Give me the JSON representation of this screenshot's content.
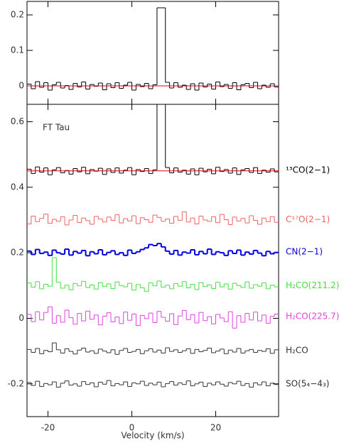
{
  "chart_data": [
    {
      "type": "step",
      "xlim": [
        -25,
        35
      ],
      "xticks": [
        -20,
        0,
        20
      ],
      "ylim": [
        -0.052,
        0.238
      ],
      "yticks": [
        0,
        0.1,
        0.2
      ],
      "x": [
        -24.5,
        -23.5,
        -22.5,
        -21.5,
        -20.5,
        -19.5,
        -18.5,
        -17.5,
        -16.5,
        -15.5,
        -14.5,
        -13.5,
        -12.5,
        -11.5,
        -10.5,
        -9.5,
        -8.5,
        -7.5,
        -6.5,
        -5.5,
        -4.5,
        -3.5,
        -2.5,
        -1.5,
        -0.5,
        0.5,
        1.5,
        2.5,
        3.5,
        4.5,
        5.5,
        6.5,
        7.5,
        8.5,
        9.5,
        10.5,
        11.5,
        12.5,
        13.5,
        14.5,
        15.5,
        16.5,
        17.5,
        18.5,
        19.5,
        20.5,
        21.5,
        22.5,
        23.5,
        24.5,
        25.5,
        26.5,
        27.5,
        28.5,
        29.5,
        30.5,
        31.5,
        32.5,
        33.5,
        34.5
      ],
      "series": [
        {
          "color": "#000000",
          "values": [
            0.005,
            -0.008,
            0.012,
            -0.004,
            0.009,
            -0.012,
            0.003,
            0.01,
            -0.006,
            0.001,
            -0.01,
            0.007,
            -0.003,
            0.011,
            -0.009,
            0.004,
            -0.001,
            0.008,
            -0.011,
            0.006,
            -0.005,
            0.009,
            -0.007,
            0.002,
            0.01,
            -0.012,
            0.004,
            -0.002,
            0.007,
            -0.008,
            0.003,
            0.22,
            0.22,
            0.01,
            -0.006,
            0.009,
            -0.004,
            0.002,
            -0.01,
            0.006,
            -0.012,
            0.008,
            -0.003,
            0.005,
            -0.009,
            0.011,
            -0.002,
            0.004,
            -0.007,
            0.009,
            -0.011,
            0.003,
            0.007,
            -0.005,
            0.01,
            -0.008,
            0.002,
            -0.004,
            0.006,
            -0.003
          ]
        },
        {
          "color": "#e00000",
          "style": "line",
          "x": [
            -25,
            35
          ],
          "values": [
            0,
            0
          ]
        }
      ]
    },
    {
      "type": "step",
      "xlim": [
        -25,
        35
      ],
      "xticks": [
        -20,
        0,
        20
      ],
      "ylim": [
        -0.3,
        0.653
      ],
      "yticks": [
        -0.2,
        0,
        0.2,
        0.4,
        0.6
      ],
      "xlabel": "Velocity (km/s)",
      "annotation": "FT Tau",
      "x": [
        -24.5,
        -23.5,
        -22.5,
        -21.5,
        -20.5,
        -19.5,
        -18.5,
        -17.5,
        -16.5,
        -15.5,
        -14.5,
        -13.5,
        -12.5,
        -11.5,
        -10.5,
        -9.5,
        -8.5,
        -7.5,
        -6.5,
        -5.5,
        -4.5,
        -3.5,
        -2.5,
        -1.5,
        -0.5,
        0.5,
        1.5,
        2.5,
        3.5,
        4.5,
        5.5,
        6.5,
        7.5,
        8.5,
        9.5,
        10.5,
        11.5,
        12.5,
        13.5,
        14.5,
        15.5,
        16.5,
        17.5,
        18.5,
        19.5,
        20.5,
        21.5,
        22.5,
        23.5,
        24.5,
        25.5,
        26.5,
        27.5,
        28.5,
        29.5,
        30.5,
        31.5,
        32.5,
        33.5,
        34.5
      ],
      "series": [
        {
          "name": "¹³CO(2−1)",
          "color": "#000000",
          "values": [
            0.455,
            0.442,
            0.462,
            0.446,
            0.459,
            0.438,
            0.453,
            0.46,
            0.444,
            0.451,
            0.44,
            0.457,
            0.447,
            0.461,
            0.441,
            0.454,
            0.449,
            0.458,
            0.439,
            0.456,
            0.445,
            0.459,
            0.443,
            0.452,
            0.46,
            0.438,
            0.454,
            0.448,
            0.457,
            0.442,
            0.453,
            0.67,
            0.67,
            0.46,
            0.444,
            0.459,
            0.446,
            0.452,
            0.44,
            0.456,
            0.438,
            0.458,
            0.447,
            0.455,
            0.441,
            0.461,
            0.448,
            0.454,
            0.443,
            0.459,
            0.439,
            0.453,
            0.457,
            0.445,
            0.46,
            0.442,
            0.452,
            0.446,
            0.456,
            0.447
          ]
        },
        {
          "color": "#e00000",
          "style": "line",
          "x": [
            -25,
            35
          ],
          "values": [
            0.45,
            0.45
          ]
        },
        {
          "name": "C¹⁷O(2−1)",
          "color": "#f06060",
          "values": [
            0.288,
            0.312,
            0.295,
            0.305,
            0.318,
            0.29,
            0.302,
            0.296,
            0.31,
            0.285,
            0.3,
            0.314,
            0.292,
            0.306,
            0.298,
            0.287,
            0.311,
            0.303,
            0.294,
            0.309,
            0.299,
            0.316,
            0.291,
            0.304,
            0.297,
            0.313,
            0.289,
            0.307,
            0.301,
            0.293,
            0.315,
            0.308,
            0.296,
            0.303,
            0.29,
            0.311,
            0.299,
            0.325,
            0.294,
            0.306,
            0.288,
            0.312,
            0.3,
            0.296,
            0.31,
            0.292,
            0.317,
            0.301,
            0.286,
            0.309,
            0.297,
            0.305,
            0.291,
            0.313,
            0.299,
            0.287,
            0.306,
            0.295,
            0.31,
            0.293
          ]
        },
        {
          "name": "CN(2−1)",
          "color": "#0000e0",
          "width": 2,
          "values": [
            0.205,
            0.195,
            0.21,
            0.198,
            0.202,
            0.192,
            0.208,
            0.2,
            0.196,
            0.211,
            0.193,
            0.204,
            0.199,
            0.207,
            0.191,
            0.203,
            0.197,
            0.209,
            0.194,
            0.201,
            0.206,
            0.195,
            0.2,
            0.192,
            0.208,
            0.198,
            0.203,
            0.21,
            0.215,
            0.225,
            0.222,
            0.228,
            0.218,
            0.205,
            0.196,
            0.207,
            0.193,
            0.202,
            0.199,
            0.209,
            0.194,
            0.204,
            0.197,
            0.211,
            0.195,
            0.203,
            0.2,
            0.192,
            0.206,
            0.198,
            0.208,
            0.193,
            0.202,
            0.196,
            0.207,
            0.199,
            0.191,
            0.204,
            0.197,
            0.201
          ]
        },
        {
          "name": "H₂CO(211.2)",
          "color": "#40e040",
          "values": [
            0.108,
            0.095,
            0.112,
            0.09,
            0.104,
            0.098,
            0.185,
            0.11,
            0.092,
            0.101,
            0.087,
            0.106,
            0.099,
            0.113,
            0.094,
            0.102,
            0.089,
            0.109,
            0.097,
            0.105,
            0.091,
            0.111,
            0.1,
            0.096,
            0.107,
            0.086,
            0.103,
            0.093,
            0.082,
            0.108,
            0.099,
            0.114,
            0.095,
            0.101,
            0.09,
            0.106,
            0.098,
            0.112,
            0.093,
            0.104,
            0.088,
            0.109,
            0.097,
            0.102,
            0.091,
            0.11,
            0.096,
            0.105,
            0.089,
            0.107,
            0.1,
            0.094,
            0.111,
            0.092,
            0.103,
            0.098,
            0.108,
            0.09,
            0.101,
            0.096
          ]
        },
        {
          "name": "H₂CO(225.7)",
          "color": "#e040e0",
          "values": [
            0.012,
            -0.01,
            0.02,
            -0.005,
            0.018,
            0.035,
            -0.015,
            0.008,
            -0.012,
            0.025,
            0.002,
            -0.018,
            0.015,
            -0.008,
            0.022,
            -0.003,
            0.01,
            -0.02,
            0.006,
            0.017,
            -0.011,
            0.004,
            -0.016,
            0.019,
            -0.006,
            0.013,
            -0.022,
            0.009,
            -0.001,
            0.016,
            -0.013,
            0.021,
            0.003,
            -0.009,
            0.014,
            -0.019,
            0.007,
            0.024,
            -0.004,
            0.011,
            -0.014,
            0.018,
            -0.007,
            0.005,
            -0.017,
            0.012,
            0.001,
            -0.01,
            0.02,
            -0.03,
            0.008,
            -0.012,
            0.015,
            -0.005,
            0.019,
            -0.008,
            0.01,
            -0.015,
            0.006,
            0.013
          ]
        },
        {
          "name": "H₂CO",
          "color": "#333333",
          "values": [
            -0.095,
            -0.104,
            -0.092,
            -0.108,
            -0.098,
            -0.102,
            -0.075,
            -0.096,
            -0.106,
            -0.093,
            -0.101,
            -0.109,
            -0.097,
            -0.091,
            -0.103,
            -0.099,
            -0.107,
            -0.094,
            -0.1,
            -0.105,
            -0.096,
            -0.11,
            -0.098,
            -0.092,
            -0.104,
            -0.101,
            -0.095,
            -0.108,
            -0.099,
            -0.093,
            -0.103,
            -0.097,
            -0.106,
            -0.09,
            -0.101,
            -0.096,
            -0.104,
            -0.099,
            -0.093,
            -0.107,
            -0.095,
            -0.102,
            -0.098,
            -0.091,
            -0.105,
            -0.1,
            -0.094,
            -0.108,
            -0.097,
            -0.103,
            -0.092,
            -0.106,
            -0.099,
            -0.095,
            -0.104,
            -0.098,
            -0.101,
            -0.093,
            -0.107,
            -0.096
          ]
        },
        {
          "name": "SO(5₄−4₃)",
          "color": "#333333",
          "values": [
            -0.196,
            -0.205,
            -0.192,
            -0.208,
            -0.199,
            -0.203,
            -0.194,
            -0.21,
            -0.198,
            -0.191,
            -0.204,
            -0.2,
            -0.207,
            -0.193,
            -0.202,
            -0.197,
            -0.209,
            -0.195,
            -0.201,
            -0.19,
            -0.206,
            -0.199,
            -0.203,
            -0.194,
            -0.208,
            -0.197,
            -0.2,
            -0.192,
            -0.205,
            -0.198,
            -0.203,
            -0.195,
            -0.209,
            -0.199,
            -0.193,
            -0.204,
            -0.197,
            -0.202,
            -0.191,
            -0.206,
            -0.2,
            -0.195,
            -0.208,
            -0.198,
            -0.203,
            -0.194,
            -0.201,
            -0.207,
            -0.196,
            -0.2,
            -0.192,
            -0.205,
            -0.199,
            -0.21,
            -0.197,
            -0.203,
            -0.194,
            -0.206,
            -0.198,
            -0.202
          ]
        }
      ]
    }
  ]
}
